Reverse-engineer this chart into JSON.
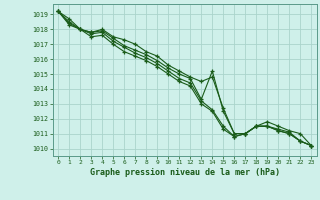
{
  "title": "Graphe pression niveau de la mer (hPa)",
  "bg_color": "#cff0ea",
  "grid_color": "#aad4cc",
  "line_color": "#1a5c1a",
  "spine_color": "#5a9a8a",
  "ylim": [
    1009.5,
    1019.7
  ],
  "xlim": [
    -0.5,
    23.5
  ],
  "yticks": [
    1010,
    1011,
    1012,
    1013,
    1014,
    1015,
    1016,
    1017,
    1018,
    1019
  ],
  "xticks": [
    0,
    1,
    2,
    3,
    4,
    5,
    6,
    7,
    8,
    9,
    10,
    11,
    12,
    13,
    14,
    15,
    16,
    17,
    18,
    19,
    20,
    21,
    22,
    23
  ],
  "series": [
    [
      1019.2,
      1018.7,
      1018.0,
      1017.8,
      1018.0,
      1017.5,
      1017.3,
      1017.0,
      1016.5,
      1016.2,
      1015.6,
      1015.2,
      1014.8,
      1014.5,
      1014.8,
      1012.7,
      1011.0,
      1011.0,
      1011.5,
      1011.5,
      1011.3,
      1011.1,
      1010.5,
      1010.2
    ],
    [
      1019.2,
      1018.5,
      1018.0,
      1017.8,
      1017.9,
      1017.4,
      1016.9,
      1016.6,
      1016.3,
      1015.9,
      1015.4,
      1015.0,
      1014.7,
      1013.3,
      1015.2,
      1012.5,
      1011.0,
      1011.0,
      1011.5,
      1011.5,
      1011.2,
      1011.0,
      1010.5,
      1010.2
    ],
    [
      1019.2,
      1018.4,
      1018.0,
      1017.7,
      1017.8,
      1017.2,
      1016.8,
      1016.4,
      1016.1,
      1015.7,
      1015.2,
      1014.7,
      1014.4,
      1013.2,
      1012.6,
      1011.5,
      1010.8,
      1011.0,
      1011.5,
      1011.8,
      1011.5,
      1011.2,
      1011.0,
      1010.2
    ],
    [
      1019.2,
      1018.3,
      1018.0,
      1017.5,
      1017.6,
      1017.0,
      1016.5,
      1016.2,
      1015.9,
      1015.5,
      1015.0,
      1014.5,
      1014.2,
      1013.0,
      1012.5,
      1011.3,
      1010.8,
      1011.0,
      1011.5,
      1011.5,
      1011.2,
      1011.0,
      1010.5,
      1010.2
    ]
  ]
}
